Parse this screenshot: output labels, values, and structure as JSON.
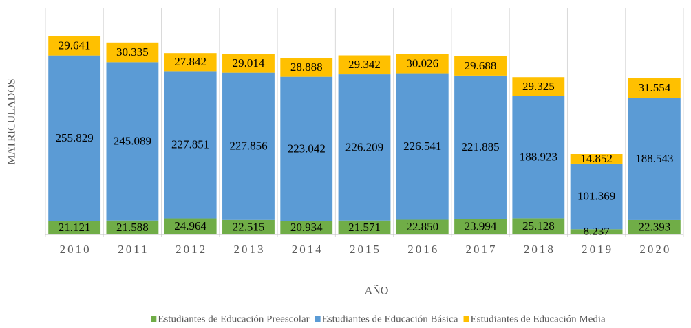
{
  "chart_data": {
    "type": "stacked_bar",
    "x_label": "AÑO",
    "y_label": "MATRICULADOS",
    "categories": [
      "2010",
      "2011",
      "2012",
      "2013",
      "2014",
      "2015",
      "2016",
      "2017",
      "2018",
      "2019",
      "2020"
    ],
    "series": [
      {
        "name": "Estudiantes de Educación Preescolar",
        "color": "#70ad47",
        "values": [
          21121,
          21588,
          24964,
          22515,
          20934,
          21571,
          22850,
          23994,
          25128,
          8237,
          22393
        ],
        "value_labels": [
          "21.121",
          "21.588",
          "24.964",
          "22.515",
          "20.934",
          "21.571",
          "22.850",
          "23.994",
          "25.128",
          "8.237",
          "22.393"
        ]
      },
      {
        "name": "Estudiantes de Educación Básica",
        "color": "#5b9bd5",
        "values": [
          255829,
          245089,
          227851,
          227856,
          223042,
          226209,
          226541,
          221885,
          188923,
          101369,
          188543
        ],
        "value_labels": [
          "255.829",
          "245.089",
          "227.851",
          "227.856",
          "223.042",
          "226.209",
          "226.541",
          "221.885",
          "188.923",
          "101.369",
          "188.543"
        ]
      },
      {
        "name": "Estudiantes de Educación Media",
        "color": "#ffc000",
        "values": [
          29641,
          30335,
          27842,
          29014,
          28888,
          29342,
          30026,
          29688,
          29325,
          14852,
          31554
        ],
        "value_labels": [
          "29.641",
          "30.335",
          "27.842",
          "29.014",
          "28.888",
          "29.342",
          "30.026",
          "29.688",
          "29.325",
          "14.852",
          "31.554"
        ]
      }
    ],
    "ylim": [
      0,
      350000
    ],
    "grid": true,
    "legend": "bottom"
  }
}
